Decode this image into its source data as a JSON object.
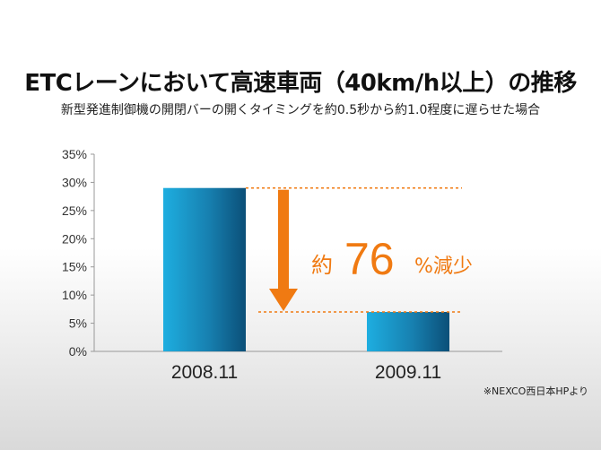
{
  "chart_data": {
    "type": "bar",
    "title": "ETCレーンにおいて高速車両（40km/h以上）の推移",
    "subtitle": "新型発進制御機の開閉バーの開くタイミングを約0.5秒から約1.0程度に遅らせた場合",
    "categories": [
      "2008.11",
      "2009.11"
    ],
    "values": [
      29,
      7
    ],
    "ylim": [
      0,
      35
    ],
    "yticks": [
      0,
      5,
      10,
      15,
      20,
      25,
      30,
      35
    ],
    "ytick_labels": [
      "0%",
      "5%",
      "10%",
      "15%",
      "20%",
      "25%",
      "30%",
      "35%"
    ],
    "annotation": {
      "prefix": "約",
      "number": "76",
      "suffix": "%減少"
    },
    "bar_colors": [
      "#1aa6d9",
      "#0b4f78"
    ],
    "accent_color": "#f07a12",
    "source": "※NEXCO西日本HPより"
  }
}
